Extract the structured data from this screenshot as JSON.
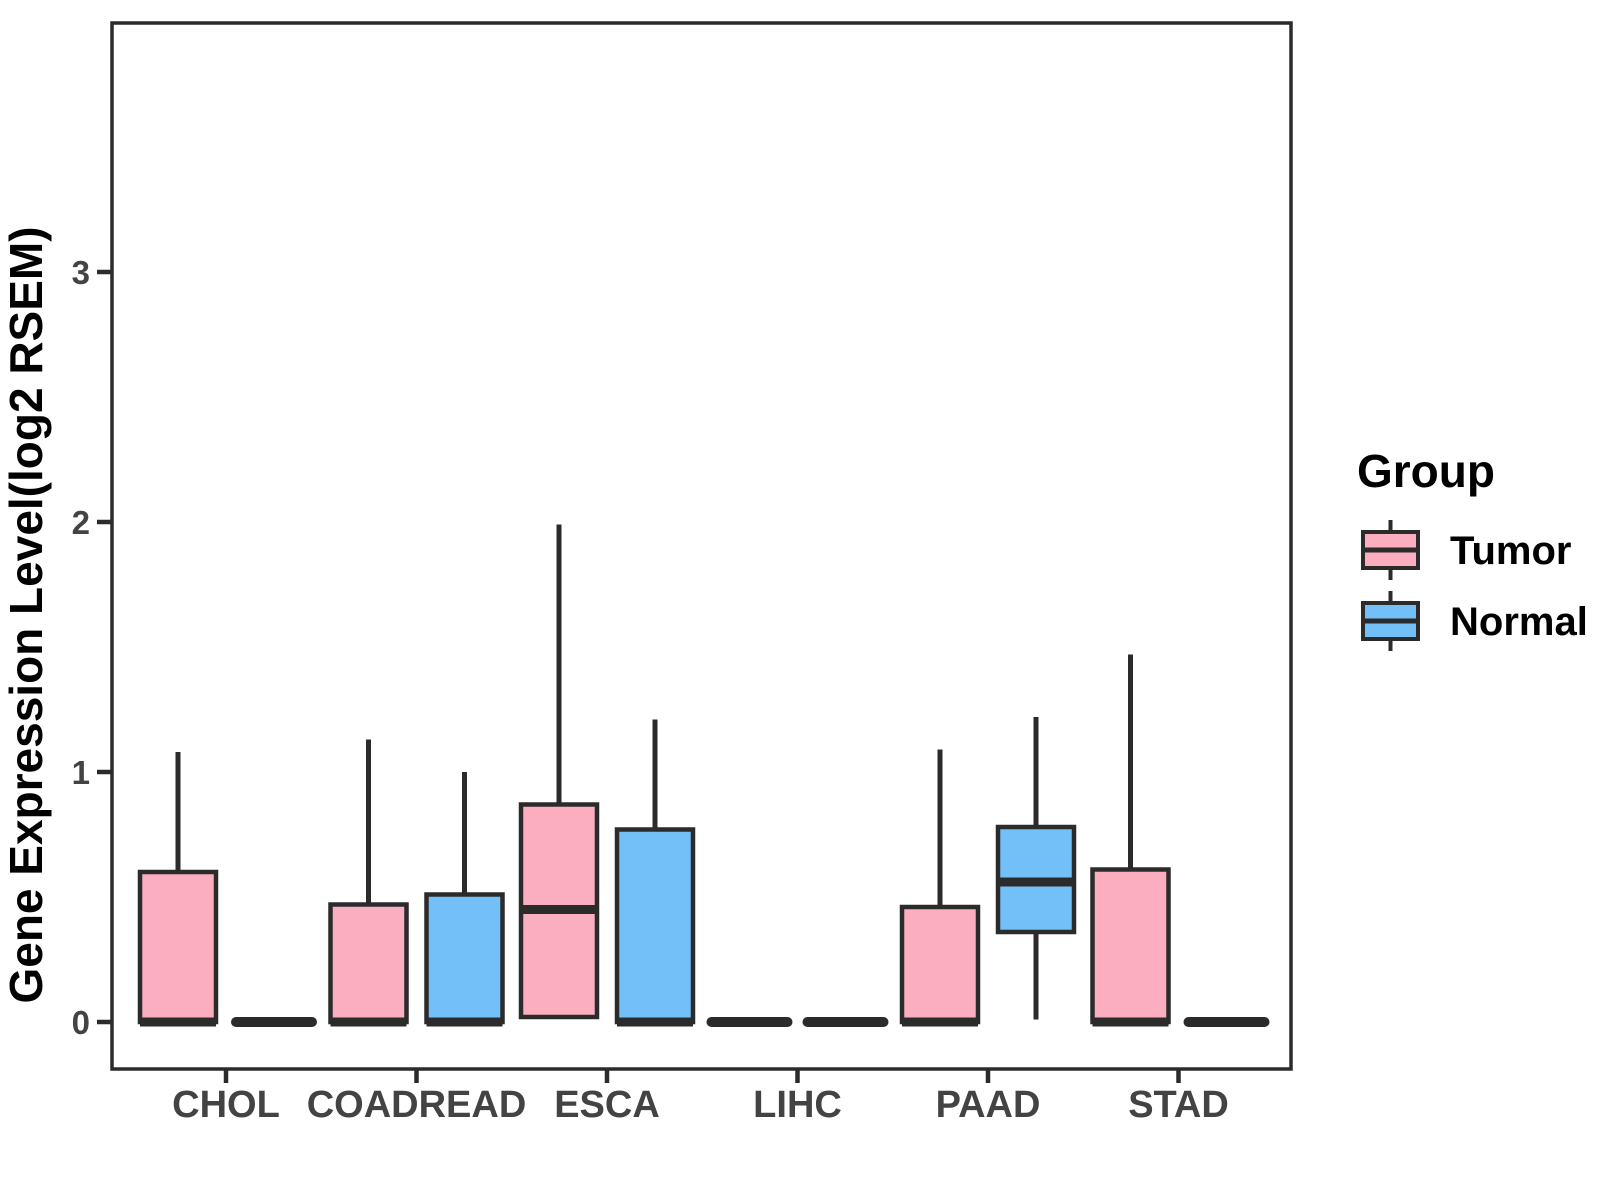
{
  "chart_data": {
    "type": "boxplot",
    "title": "",
    "ylabel": "Gene Expression Level(log2 RSEM)",
    "xlabel": "",
    "categories": [
      "CHOL",
      "COADREAD",
      "ESCA",
      "LIHC",
      "PAAD",
      "STAD"
    ],
    "ytick_labels": [
      "0",
      "1",
      "2",
      "3"
    ],
    "ytick_values": [
      0,
      1,
      2,
      3
    ],
    "ylim": [
      -0.19,
      4.0
    ],
    "grid": "off",
    "legend_position": "right",
    "legend": {
      "title": "Group",
      "entries": [
        {
          "label": "Tumor",
          "color": "#FBAEC0"
        },
        {
          "label": "Normal",
          "color": "#73BFF8"
        }
      ]
    },
    "series": [
      {
        "name": "Tumor",
        "color": "#FBAEC0",
        "boxes": [
          {
            "category": "CHOL",
            "whisker_low": 0,
            "q1": 0,
            "median": 0,
            "q3": 0.6,
            "whisker_high": 1.08
          },
          {
            "category": "COADREAD",
            "whisker_low": 0,
            "q1": 0,
            "median": 0,
            "q3": 0.47,
            "whisker_high": 1.13
          },
          {
            "category": "ESCA",
            "whisker_low": 0.02,
            "q1": 0.02,
            "median": 0.45,
            "q3": 0.87,
            "whisker_high": 1.99
          },
          {
            "category": "LIHC",
            "whisker_low": 0,
            "q1": 0,
            "median": 0,
            "q3": 0,
            "whisker_high": 0
          },
          {
            "category": "PAAD",
            "whisker_low": 0,
            "q1": 0,
            "median": 0,
            "q3": 0.46,
            "whisker_high": 1.09
          },
          {
            "category": "STAD",
            "whisker_low": 0,
            "q1": 0,
            "median": 0,
            "q3": 0.61,
            "whisker_high": 1.47
          }
        ]
      },
      {
        "name": "Normal",
        "color": "#73BFF8",
        "boxes": [
          {
            "category": "CHOL",
            "whisker_low": 0,
            "q1": 0,
            "median": 0,
            "q3": 0,
            "whisker_high": 0
          },
          {
            "category": "COADREAD",
            "whisker_low": 0,
            "q1": 0,
            "median": 0,
            "q3": 0.51,
            "whisker_high": 1.0
          },
          {
            "category": "ESCA",
            "whisker_low": 0,
            "q1": 0,
            "median": 0,
            "q3": 0.77,
            "whisker_high": 1.21
          },
          {
            "category": "LIHC",
            "whisker_low": 0,
            "q1": 0,
            "median": 0,
            "q3": 0,
            "whisker_high": 0
          },
          {
            "category": "PAAD",
            "whisker_low": 0.01,
            "q1": 0.36,
            "median": 0.56,
            "q3": 0.78,
            "whisker_high": 1.22
          },
          {
            "category": "STAD",
            "whisker_low": 0,
            "q1": 0,
            "median": 0,
            "q3": 0,
            "whisker_high": 0
          }
        ]
      }
    ]
  },
  "style": {
    "background": "#FFFFFF",
    "ink": "#2B2B2B",
    "tick_label_color": "#434343",
    "title_color": "#000000",
    "tumor_fill": "#FBAEC0",
    "normal_fill": "#73BFF8"
  }
}
